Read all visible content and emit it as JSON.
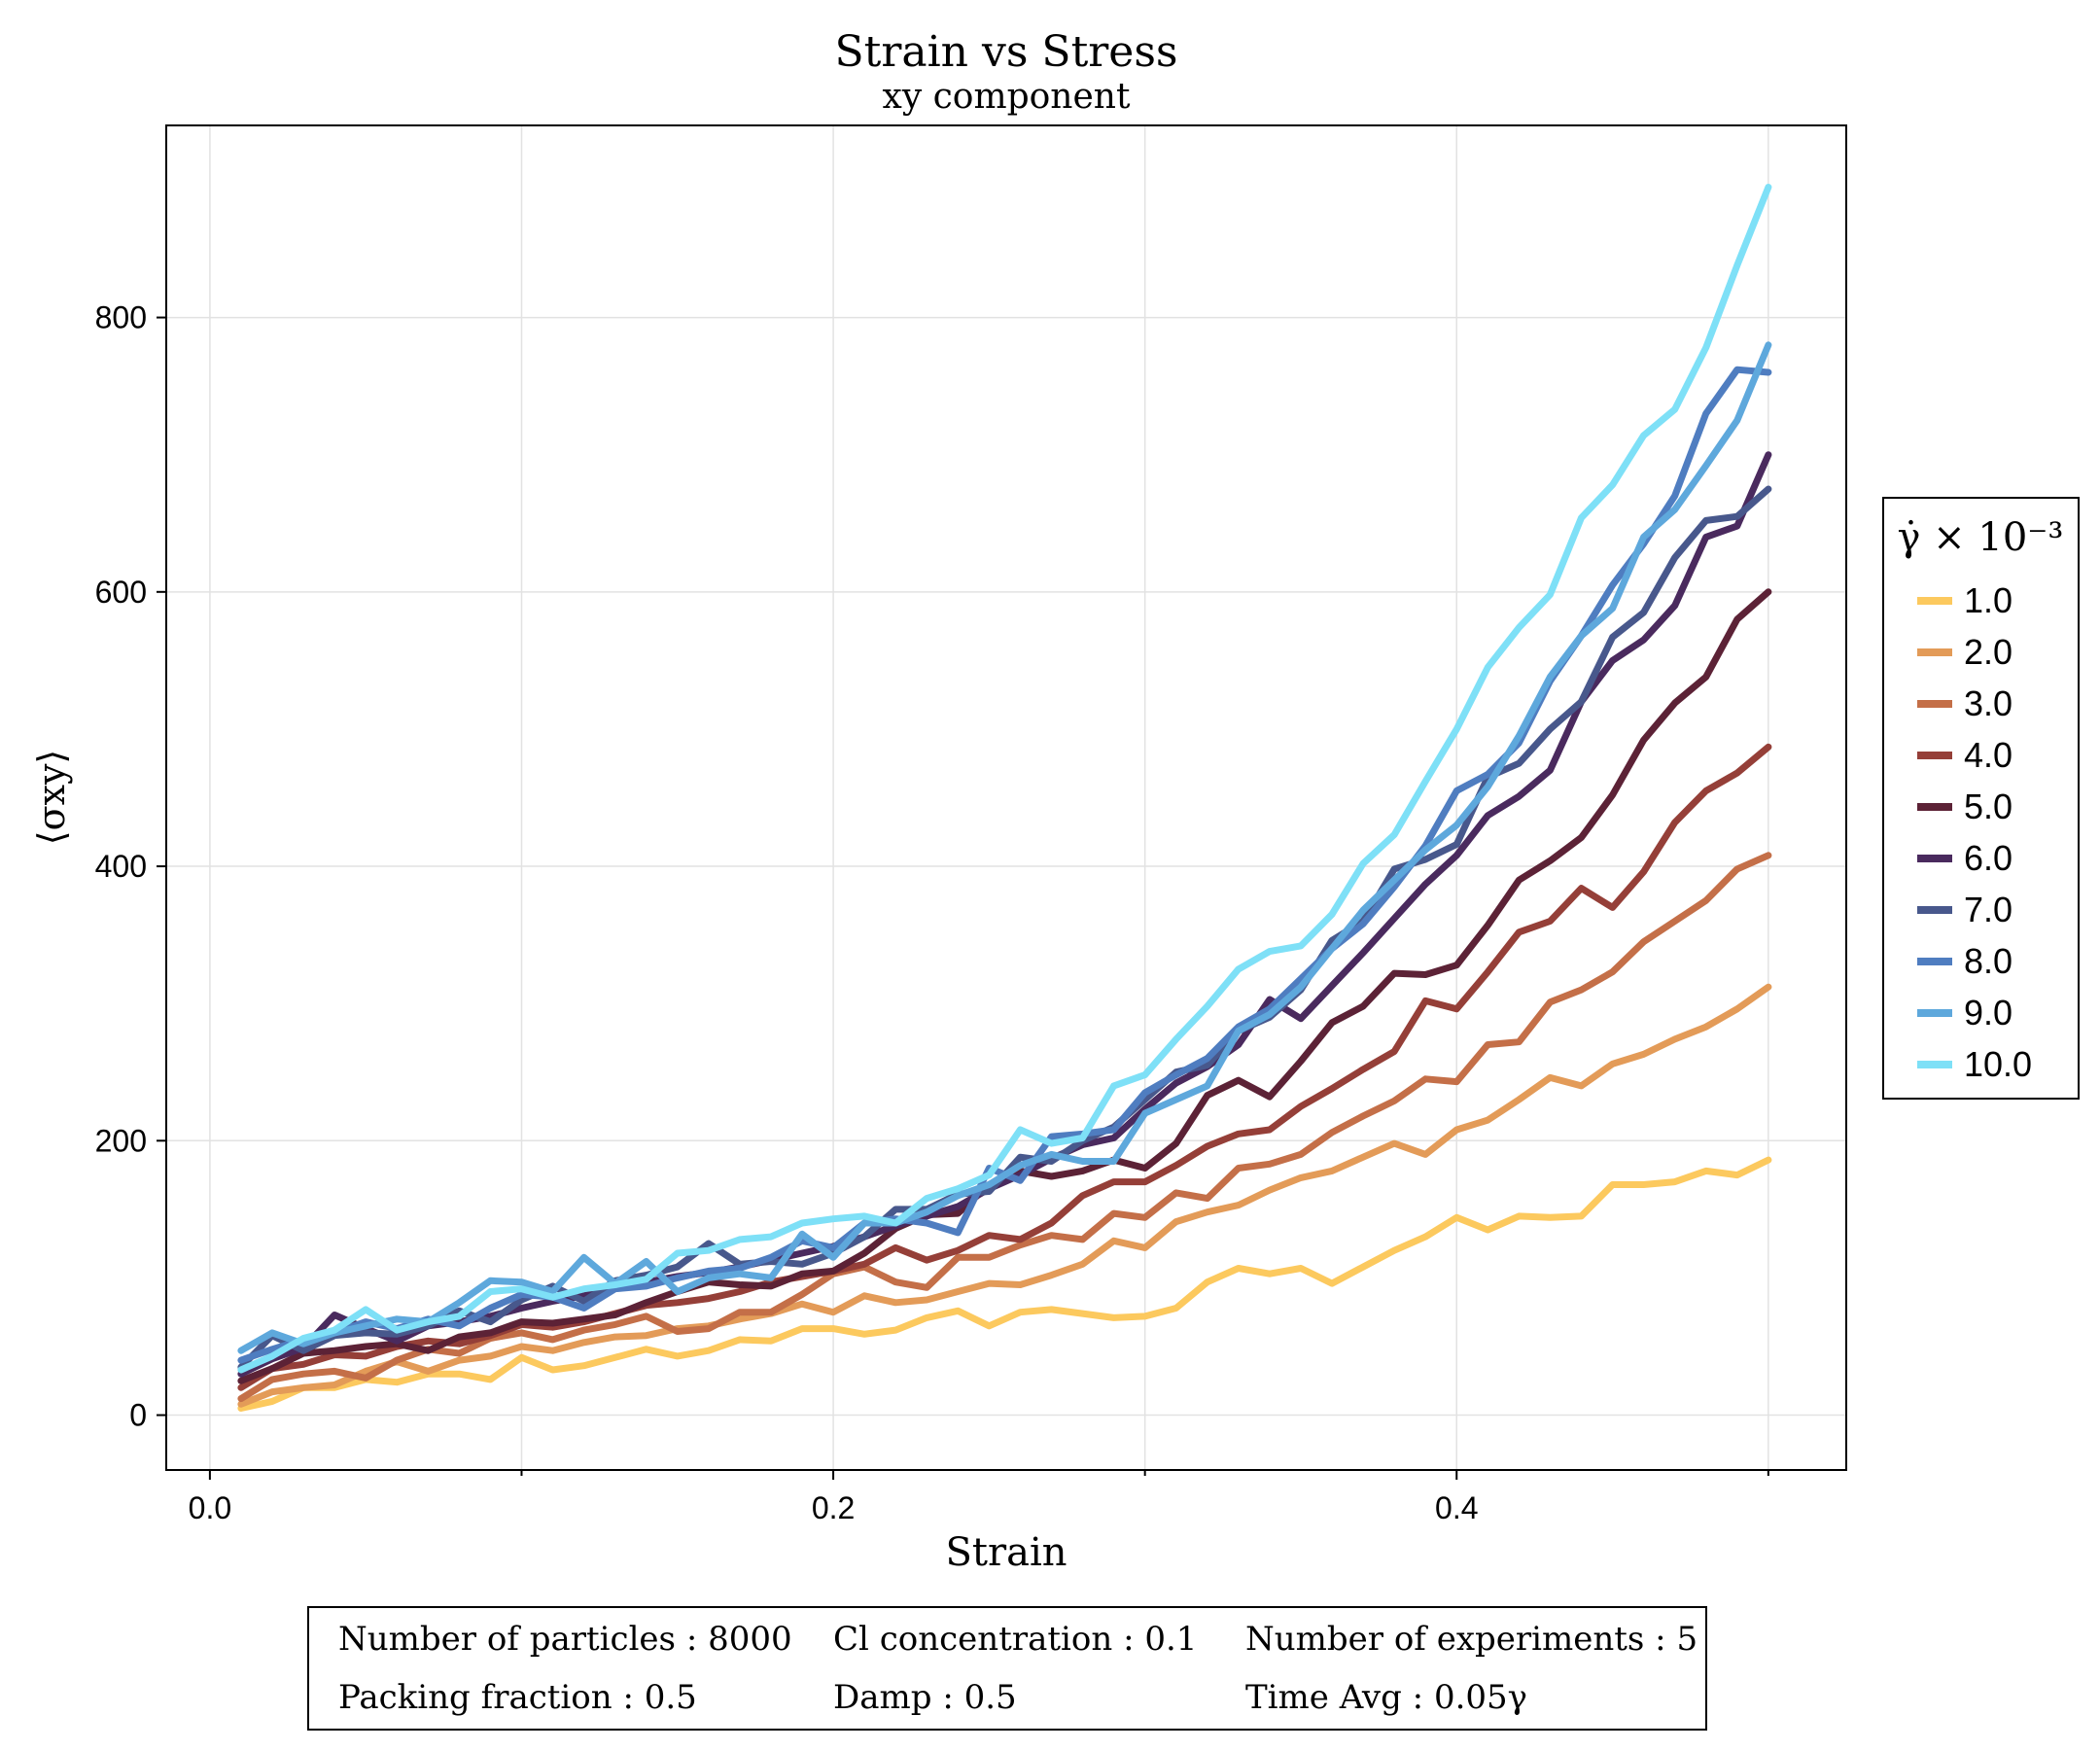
{
  "chart_data": {
    "type": "line",
    "title": "Strain vs Stress",
    "subtitle": "xy component",
    "xlabel": "Strain",
    "ylabel": "⟨σxy⟩",
    "xlim": [
      -0.014,
      0.525
    ],
    "ylim": [
      -40,
      940
    ],
    "xticks": [
      0.0,
      0.2,
      0.4
    ],
    "xtick_labels": [
      "0.0",
      "0.2",
      "0.4"
    ],
    "yticks": [
      0,
      200,
      400,
      600,
      800
    ],
    "ytick_labels": [
      "0",
      "200",
      "400",
      "600",
      "800"
    ],
    "grid": true,
    "legend": {
      "title": "γ̇ × 10⁻³",
      "placement": "right"
    },
    "x": [
      0.01,
      0.02,
      0.03,
      0.04,
      0.05,
      0.06,
      0.07,
      0.08,
      0.09,
      0.1,
      0.11,
      0.12,
      0.13,
      0.14,
      0.15,
      0.16,
      0.17,
      0.18,
      0.19,
      0.2,
      0.21,
      0.22,
      0.23,
      0.24,
      0.25,
      0.26,
      0.27,
      0.28,
      0.29,
      0.3,
      0.31,
      0.32,
      0.33,
      0.34,
      0.35,
      0.36,
      0.37,
      0.38,
      0.39,
      0.4,
      0.41,
      0.42,
      0.43,
      0.44,
      0.45,
      0.46,
      0.47,
      0.48,
      0.49,
      0.5
    ],
    "series": [
      {
        "name": "1.0",
        "color": "#fcc95e",
        "values": [
          5,
          10,
          20,
          20,
          26,
          24,
          30,
          30,
          26,
          42,
          33,
          36,
          42,
          48,
          43,
          47,
          55,
          54,
          63,
          63,
          59,
          62,
          71,
          76,
          65,
          75,
          77,
          74,
          71,
          72,
          78,
          97,
          107,
          103,
          107,
          96,
          108,
          120,
          130,
          144,
          135,
          145,
          144,
          145,
          168,
          168,
          170,
          178,
          175,
          186
        ]
      },
      {
        "name": "2.0",
        "color": "#e39b58",
        "values": [
          8,
          17,
          20,
          22,
          32,
          39,
          32,
          40,
          43,
          50,
          47,
          53,
          57,
          58,
          63,
          65,
          70,
          74,
          81,
          75,
          87,
          82,
          84,
          90,
          96,
          95,
          102,
          110,
          127,
          122,
          141,
          148,
          153,
          164,
          173,
          178,
          188,
          198,
          190,
          208,
          215,
          230,
          246,
          240,
          256,
          263,
          274,
          283,
          296,
          312
        ]
      },
      {
        "name": "3.0",
        "color": "#c46f48",
        "values": [
          12,
          26,
          30,
          32,
          27,
          40,
          48,
          45,
          56,
          60,
          55,
          62,
          66,
          72,
          61,
          63,
          75,
          75,
          88,
          103,
          108,
          97,
          93,
          115,
          115,
          124,
          131,
          128,
          147,
          144,
          162,
          158,
          180,
          183,
          190,
          206,
          218,
          229,
          245,
          243,
          270,
          272,
          301,
          310,
          323,
          345,
          360,
          375,
          398,
          408
        ]
      },
      {
        "name": "4.0",
        "color": "#953f38",
        "values": [
          20,
          34,
          37,
          44,
          43,
          50,
          54,
          52,
          58,
          66,
          64,
          68,
          74,
          80,
          82,
          85,
          90,
          97,
          101,
          105,
          110,
          122,
          113,
          120,
          131,
          128,
          140,
          160,
          170,
          170,
          182,
          196,
          205,
          208,
          225,
          238,
          252,
          265,
          302,
          296,
          323,
          352,
          360,
          384,
          370,
          396,
          432,
          455,
          468,
          487
        ]
      },
      {
        "name": "5.0",
        "color": "#5c2236",
        "values": [
          25,
          34,
          45,
          47,
          50,
          52,
          47,
          57,
          60,
          68,
          67,
          70,
          73,
          82,
          90,
          97,
          95,
          94,
          103,
          105,
          118,
          136,
          146,
          147,
          168,
          178,
          174,
          178,
          186,
          180,
          198,
          233,
          244,
          232,
          258,
          286,
          298,
          322,
          321,
          328,
          357,
          390,
          404,
          421,
          452,
          492,
          519,
          538,
          580,
          600
        ]
      },
      {
        "name": "6.0",
        "color": "#4a2a5e",
        "values": [
          30,
          41,
          49,
          73,
          63,
          54,
          65,
          68,
          72,
          78,
          83,
          87,
          92,
          97,
          101,
          104,
          108,
          113,
          118,
          123,
          130,
          138,
          145,
          152,
          165,
          175,
          187,
          197,
          202,
          223,
          242,
          254,
          270,
          303,
          289,
          313,
          337,
          362,
          387,
          408,
          437,
          451,
          470,
          520,
          550,
          565,
          590,
          640,
          648,
          700
        ]
      },
      {
        "name": "7.0",
        "color": "#48588c",
        "values": [
          35,
          58,
          47,
          58,
          60,
          59,
          65,
          76,
          68,
          84,
          94,
          83,
          98,
          102,
          108,
          125,
          110,
          112,
          110,
          118,
          130,
          150,
          150,
          161,
          163,
          188,
          185,
          200,
          210,
          230,
          250,
          255,
          280,
          290,
          310,
          346,
          360,
          398,
          405,
          416,
          465,
          475,
          500,
          520,
          567,
          585,
          625,
          652,
          655,
          675
        ]
      },
      {
        "name": "8.0",
        "color": "#4f7dc0",
        "values": [
          40,
          48,
          55,
          60,
          68,
          63,
          70,
          65,
          78,
          88,
          86,
          78,
          92,
          94,
          100,
          105,
          107,
          115,
          127,
          122,
          140,
          143,
          140,
          133,
          180,
          171,
          203,
          205,
          208,
          235,
          248,
          260,
          283,
          296,
          318,
          340,
          358,
          385,
          415,
          455,
          467,
          490,
          535,
          568,
          605,
          635,
          670,
          730,
          762,
          760
        ]
      },
      {
        "name": "9.0",
        "color": "#5ea8dc",
        "values": [
          47,
          60,
          52,
          60,
          65,
          70,
          68,
          82,
          98,
          97,
          90,
          115,
          96,
          112,
          90,
          100,
          103,
          100,
          132,
          115,
          140,
          140,
          148,
          160,
          168,
          182,
          190,
          185,
          185,
          220,
          230,
          240,
          280,
          292,
          312,
          340,
          368,
          390,
          412,
          430,
          458,
          495,
          538,
          568,
          588,
          640,
          660,
          692,
          725,
          780
        ]
      },
      {
        "name": "10.0",
        "color": "#7ee0f7",
        "values": [
          33,
          43,
          56,
          62,
          77,
          62,
          68,
          72,
          90,
          92,
          86,
          92,
          95,
          99,
          118,
          120,
          128,
          130,
          140,
          143,
          145,
          140,
          158,
          165,
          175,
          208,
          198,
          202,
          240,
          248,
          274,
          298,
          325,
          338,
          342,
          365,
          402,
          423,
          462,
          500,
          545,
          574,
          598,
          654,
          678,
          714,
          733,
          778,
          838,
          895
        ]
      }
    ]
  },
  "info_box": {
    "rows": [
      [
        "Number of particles : 8000",
        "Cl concentration : 0.1",
        "Number of experiments : 5"
      ],
      [
        "Packing fraction : 0.5",
        "Damp : 0.5",
        "Time Avg : 0.05γ"
      ]
    ]
  }
}
